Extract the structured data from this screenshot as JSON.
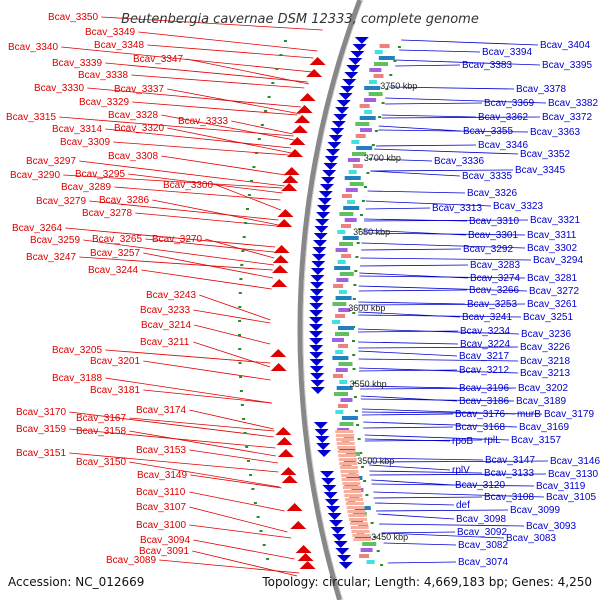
{
  "title": "Beutenbergia cavernae DSM 12333, complete genome",
  "footer": {
    "accession": "Accession: NC_012669",
    "topology": "Topology: circular; Length: 4,669,183 bp; Genes: 4,250"
  },
  "colors": {
    "forward": "#e00000",
    "reverse": "#0000d0",
    "backbone": "#888888",
    "tick": "#2a8a2a"
  },
  "kbp_labels": [
    "3750 kbp",
    "3700 kbp",
    "3650 kbp",
    "3600 kbp",
    "3550 kbp",
    "3500 kbp",
    "3450 kbp"
  ],
  "left_labels": [
    "Bcav_3350",
    "Bcav_3349",
    "Bcav_3340",
    "Bcav_3348",
    "Bcav_3339",
    "Bcav_3347",
    "Bcav_3338",
    "Bcav_3330",
    "Bcav_3337",
    "Bcav_3329",
    "Bcav_3315",
    "Bcav_3328",
    "Bcav_3333",
    "Bcav_3314",
    "Bcav_3320",
    "Bcav_3309",
    "Bcav_3308",
    "Bcav_3297",
    "Bcav_3290",
    "Bcav_3295",
    "Bcav_3300",
    "Bcav_3289",
    "Bcav_3279",
    "Bcav_3286",
    "Bcav_3278",
    "Bcav_3264",
    "Bcav_3259",
    "Bcav_3265",
    "Bcav_3270",
    "Bcav_3257",
    "Bcav_3247",
    "Bcav_3244",
    "Bcav_3243",
    "Bcav_3233",
    "Bcav_3214",
    "Bcav_3211",
    "Bcav_3205",
    "Bcav_3201",
    "Bcav_3188",
    "Bcav_3181",
    "Bcav_3174",
    "Bcav_3170",
    "Bcav_3167",
    "Bcav_3159",
    "Bcav_3158",
    "Bcav_3153",
    "Bcav_3151",
    "Bcav_3150",
    "Bcav_3149",
    "Bcav_3110",
    "Bcav_3107",
    "Bcav_3100",
    "Bcav_3094",
    "Bcav_3091",
    "Bcav_3089"
  ],
  "right_labels": [
    "Bcav_3404",
    "Bcav_3394",
    "Bcav_3383",
    "Bcav_3395",
    "Bcav_3378",
    "Bcav_3369",
    "Bcav_3382",
    "Bcav_3362",
    "Bcav_3372",
    "Bcav_3355",
    "Bcav_3363",
    "Bcav_3346",
    "Bcav_3352",
    "Bcav_3336",
    "Bcav_3345",
    "Bcav_3335",
    "Bcav_3326",
    "Bcav_3313",
    "Bcav_3323",
    "Bcav_3310",
    "Bcav_3321",
    "Bcav_3301",
    "Bcav_3311",
    "Bcav_3292",
    "Bcav_3302",
    "Bcav_3294",
    "Bcav_3283",
    "Bcav_3274",
    "Bcav_3281",
    "Bcav_3266",
    "Bcav_3272",
    "Bcav_3253",
    "Bcav_3261",
    "Bcav_3241",
    "Bcav_3251",
    "Bcav_3234",
    "Bcav_3236",
    "Bcav_3224",
    "Bcav_3226",
    "Bcav_3217",
    "Bcav_3218",
    "Bcav_3212",
    "Bcav_3213",
    "Bcav_3196",
    "Bcav_3202",
    "Bcav_3186",
    "Bcav_3189",
    "Bcav_3176",
    "murB",
    "Bcav_3179",
    "Bcav_3168",
    "Bcav_3169",
    "rpoB",
    "rplL",
    "Bcav_3157",
    "Bcav_3147",
    "Bcav_3146",
    "rplV",
    "Bcav_3133",
    "Bcav_3130",
    "Bcav_3120",
    "Bcav_3119",
    "Bcav_3108",
    "Bcav_3105",
    "def",
    "Bcav_3099",
    "Bcav_3098",
    "Bcav_3093",
    "Bcav_3092",
    "Bcav_3083",
    "Bcav_3082",
    "Bcav_3074"
  ]
}
